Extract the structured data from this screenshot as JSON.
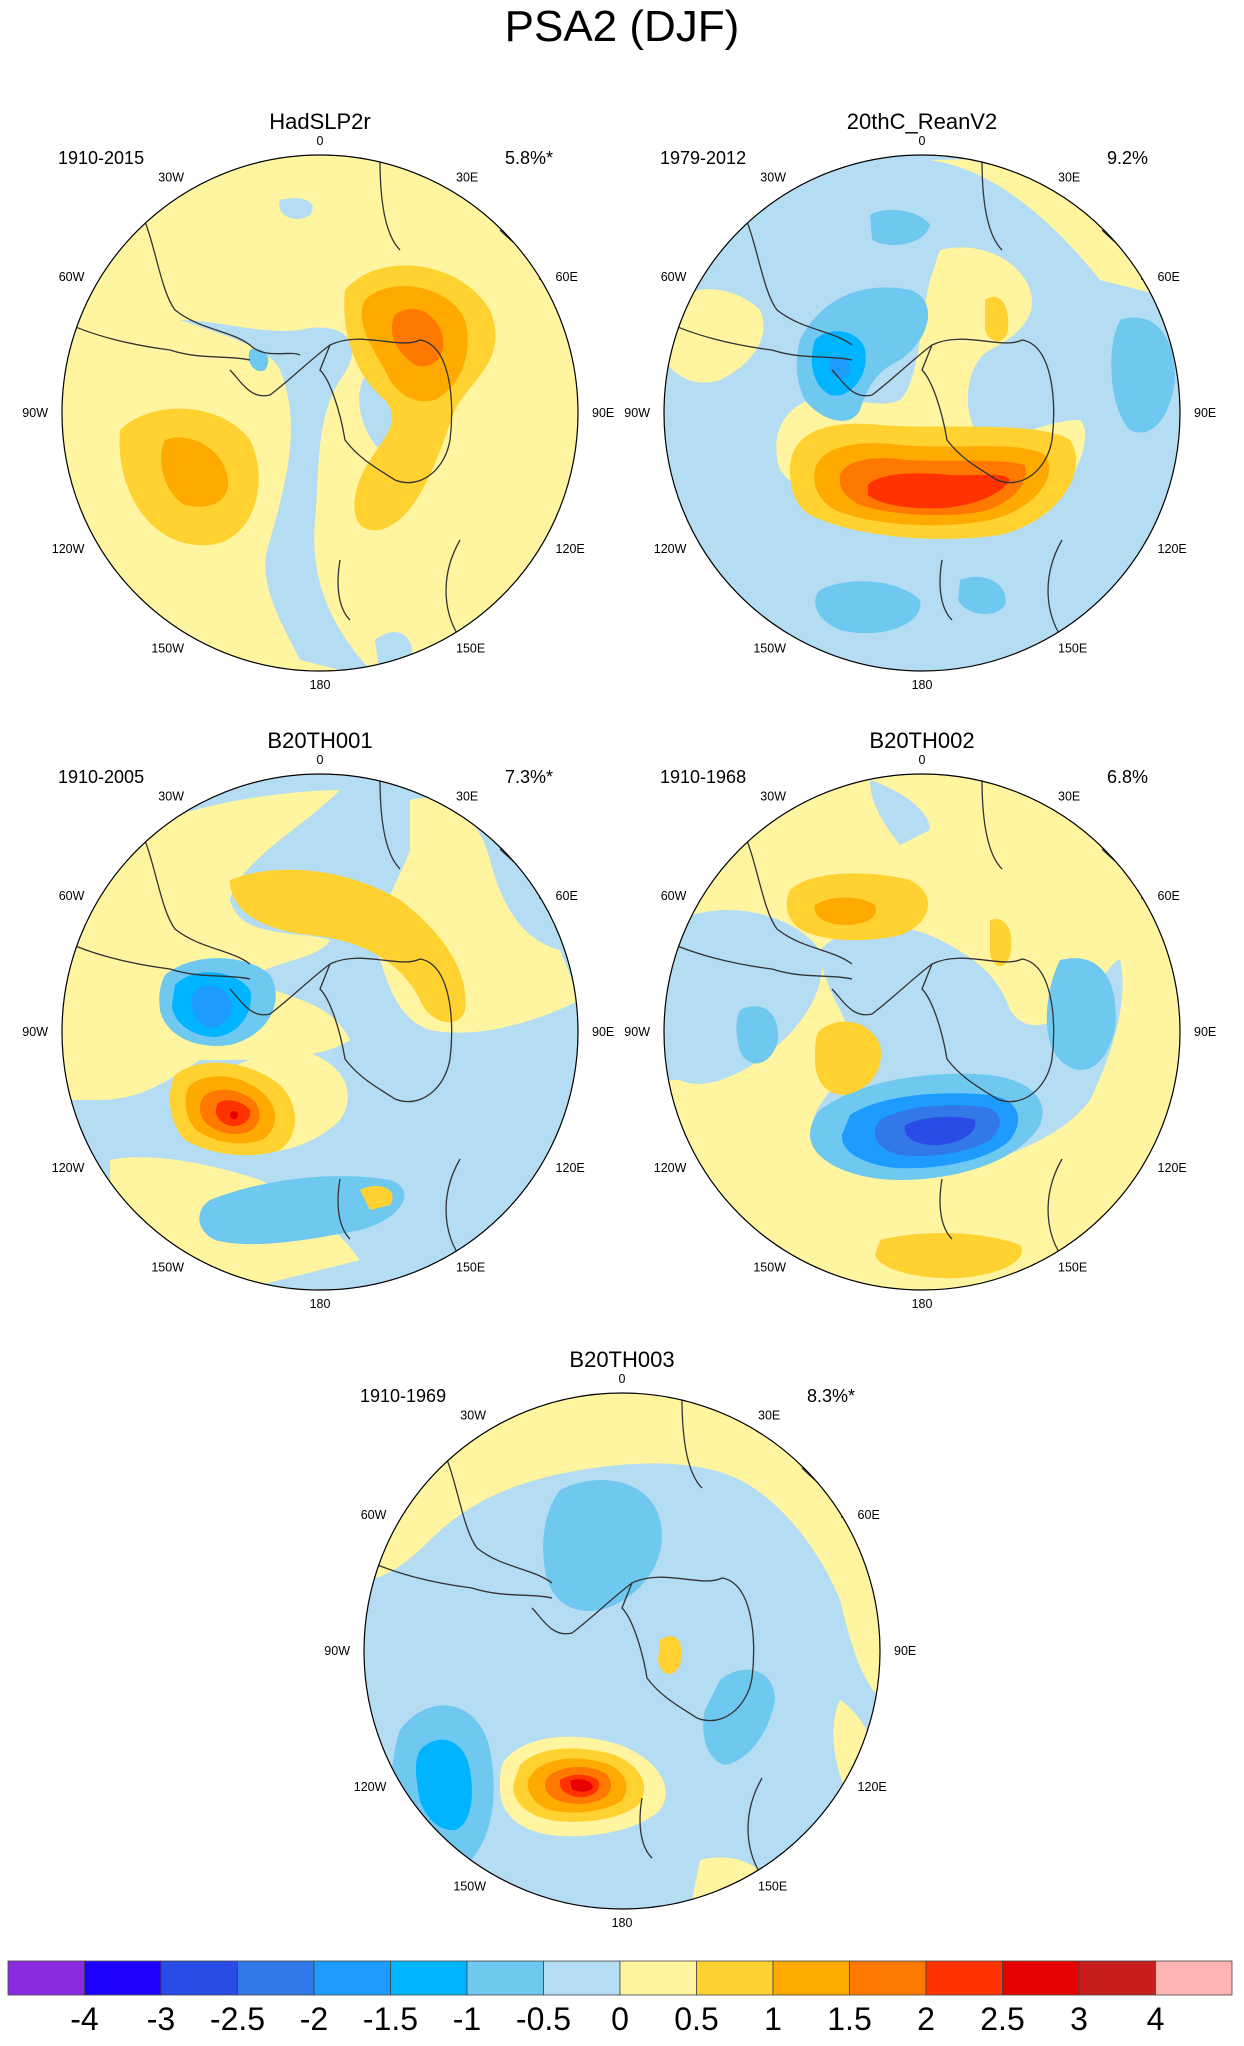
{
  "title": "PSA2 (DJF)",
  "panels": [
    {
      "name": "HadSLP2r",
      "period": "1910-2015",
      "variance": "5.8%*"
    },
    {
      "name": "20thC_ReanV2",
      "period": "1979-2012",
      "variance": "9.2%"
    },
    {
      "name": "B20TH001",
      "period": "1910-2005",
      "variance": "7.3%*"
    },
    {
      "name": "B20TH002",
      "period": "1910-1968",
      "variance": "6.8%"
    },
    {
      "name": "B20TH003",
      "period": "1910-1969",
      "variance": "8.3%*"
    }
  ],
  "longitude_labels": [
    "0",
    "30E",
    "60E",
    "90E",
    "120E",
    "150E",
    "180",
    "150W",
    "120W",
    "90W",
    "60W",
    "30W"
  ],
  "colorbar": {
    "labels": [
      "-4",
      "-3",
      "-2.5",
      "-2",
      "-1.5",
      "-1",
      "-0.5",
      "0",
      "0.5",
      "1",
      "1.5",
      "2",
      "2.5",
      "3",
      "4"
    ],
    "colors": [
      "#8a2be2",
      "#1e00ff",
      "#2a4ce6",
      "#3278e8",
      "#1e9bff",
      "#00b4ff",
      "#6ec8f0",
      "#b4dcf2",
      "#fff5a0",
      "#ffd232",
      "#ffaa00",
      "#ff7800",
      "#ff3200",
      "#e60000",
      "#c81e1e",
      "#ffb4b4"
    ]
  },
  "colors": {
    "land_outline": "#333333",
    "background_field": "#fff5a0"
  }
}
